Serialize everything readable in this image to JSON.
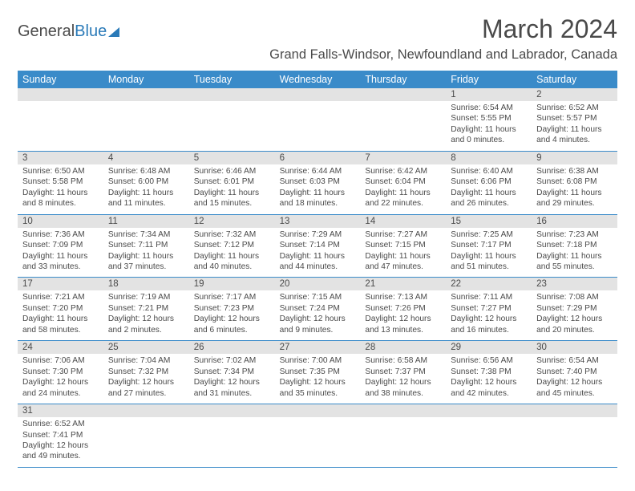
{
  "colors": {
    "header_bg": "#3a8bc9",
    "header_text": "#ffffff",
    "daynum_bg": "#e3e3e3",
    "border": "#3a8bc9",
    "text": "#4a4a4a",
    "logo_blue": "#2a7ab8"
  },
  "logo": {
    "part1": "General",
    "part2": "Blue"
  },
  "title": "March 2024",
  "location": "Grand Falls-Windsor, Newfoundland and Labrador, Canada",
  "day_names": [
    "Sunday",
    "Monday",
    "Tuesday",
    "Wednesday",
    "Thursday",
    "Friday",
    "Saturday"
  ],
  "weeks": [
    [
      null,
      null,
      null,
      null,
      null,
      {
        "n": "1",
        "sr": "6:54 AM",
        "ss": "5:55 PM",
        "dl": "11 hours and 0 minutes."
      },
      {
        "n": "2",
        "sr": "6:52 AM",
        "ss": "5:57 PM",
        "dl": "11 hours and 4 minutes."
      }
    ],
    [
      {
        "n": "3",
        "sr": "6:50 AM",
        "ss": "5:58 PM",
        "dl": "11 hours and 8 minutes."
      },
      {
        "n": "4",
        "sr": "6:48 AM",
        "ss": "6:00 PM",
        "dl": "11 hours and 11 minutes."
      },
      {
        "n": "5",
        "sr": "6:46 AM",
        "ss": "6:01 PM",
        "dl": "11 hours and 15 minutes."
      },
      {
        "n": "6",
        "sr": "6:44 AM",
        "ss": "6:03 PM",
        "dl": "11 hours and 18 minutes."
      },
      {
        "n": "7",
        "sr": "6:42 AM",
        "ss": "6:04 PM",
        "dl": "11 hours and 22 minutes."
      },
      {
        "n": "8",
        "sr": "6:40 AM",
        "ss": "6:06 PM",
        "dl": "11 hours and 26 minutes."
      },
      {
        "n": "9",
        "sr": "6:38 AM",
        "ss": "6:08 PM",
        "dl": "11 hours and 29 minutes."
      }
    ],
    [
      {
        "n": "10",
        "sr": "7:36 AM",
        "ss": "7:09 PM",
        "dl": "11 hours and 33 minutes."
      },
      {
        "n": "11",
        "sr": "7:34 AM",
        "ss": "7:11 PM",
        "dl": "11 hours and 37 minutes."
      },
      {
        "n": "12",
        "sr": "7:32 AM",
        "ss": "7:12 PM",
        "dl": "11 hours and 40 minutes."
      },
      {
        "n": "13",
        "sr": "7:29 AM",
        "ss": "7:14 PM",
        "dl": "11 hours and 44 minutes."
      },
      {
        "n": "14",
        "sr": "7:27 AM",
        "ss": "7:15 PM",
        "dl": "11 hours and 47 minutes."
      },
      {
        "n": "15",
        "sr": "7:25 AM",
        "ss": "7:17 PM",
        "dl": "11 hours and 51 minutes."
      },
      {
        "n": "16",
        "sr": "7:23 AM",
        "ss": "7:18 PM",
        "dl": "11 hours and 55 minutes."
      }
    ],
    [
      {
        "n": "17",
        "sr": "7:21 AM",
        "ss": "7:20 PM",
        "dl": "11 hours and 58 minutes."
      },
      {
        "n": "18",
        "sr": "7:19 AM",
        "ss": "7:21 PM",
        "dl": "12 hours and 2 minutes."
      },
      {
        "n": "19",
        "sr": "7:17 AM",
        "ss": "7:23 PM",
        "dl": "12 hours and 6 minutes."
      },
      {
        "n": "20",
        "sr": "7:15 AM",
        "ss": "7:24 PM",
        "dl": "12 hours and 9 minutes."
      },
      {
        "n": "21",
        "sr": "7:13 AM",
        "ss": "7:26 PM",
        "dl": "12 hours and 13 minutes."
      },
      {
        "n": "22",
        "sr": "7:11 AM",
        "ss": "7:27 PM",
        "dl": "12 hours and 16 minutes."
      },
      {
        "n": "23",
        "sr": "7:08 AM",
        "ss": "7:29 PM",
        "dl": "12 hours and 20 minutes."
      }
    ],
    [
      {
        "n": "24",
        "sr": "7:06 AM",
        "ss": "7:30 PM",
        "dl": "12 hours and 24 minutes."
      },
      {
        "n": "25",
        "sr": "7:04 AM",
        "ss": "7:32 PM",
        "dl": "12 hours and 27 minutes."
      },
      {
        "n": "26",
        "sr": "7:02 AM",
        "ss": "7:34 PM",
        "dl": "12 hours and 31 minutes."
      },
      {
        "n": "27",
        "sr": "7:00 AM",
        "ss": "7:35 PM",
        "dl": "12 hours and 35 minutes."
      },
      {
        "n": "28",
        "sr": "6:58 AM",
        "ss": "7:37 PM",
        "dl": "12 hours and 38 minutes."
      },
      {
        "n": "29",
        "sr": "6:56 AM",
        "ss": "7:38 PM",
        "dl": "12 hours and 42 minutes."
      },
      {
        "n": "30",
        "sr": "6:54 AM",
        "ss": "7:40 PM",
        "dl": "12 hours and 45 minutes."
      }
    ],
    [
      {
        "n": "31",
        "sr": "6:52 AM",
        "ss": "7:41 PM",
        "dl": "12 hours and 49 minutes."
      },
      null,
      null,
      null,
      null,
      null,
      null
    ]
  ],
  "labels": {
    "sunrise": "Sunrise:",
    "sunset": "Sunset:",
    "daylight": "Daylight:"
  }
}
